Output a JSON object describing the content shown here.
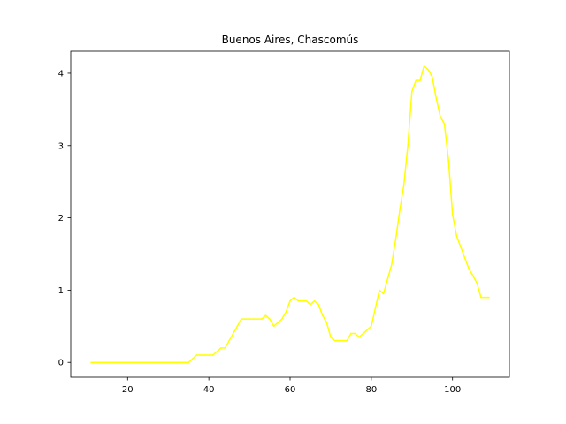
{
  "chart_data": {
    "type": "line",
    "title": "Buenos Aires, Chascomús",
    "xlabel": "",
    "ylabel": "",
    "xlim": [
      6,
      114
    ],
    "ylim": [
      -0.205,
      4.305
    ],
    "x_ticks": [
      20,
      40,
      60,
      80,
      100
    ],
    "y_ticks": [
      0,
      1,
      2,
      3,
      4
    ],
    "grid": false,
    "legend": "none",
    "series": [
      {
        "color": "#ffff00",
        "x": [
          11,
          12,
          13,
          14,
          15,
          16,
          17,
          18,
          19,
          20,
          21,
          22,
          23,
          24,
          25,
          26,
          27,
          28,
          29,
          30,
          31,
          32,
          33,
          34,
          35,
          36,
          37,
          38,
          39,
          40,
          41,
          42,
          43,
          44,
          45,
          46,
          47,
          48,
          49,
          50,
          51,
          52,
          53,
          54,
          55,
          56,
          57,
          58,
          59,
          60,
          61,
          62,
          63,
          64,
          65,
          66,
          67,
          68,
          69,
          70,
          71,
          72,
          73,
          74,
          75,
          76,
          77,
          78,
          79,
          80,
          81,
          82,
          83,
          84,
          85,
          86,
          87,
          88,
          89,
          90,
          91,
          92,
          93,
          94,
          95,
          96,
          97,
          98,
          99,
          100,
          101,
          102,
          103,
          104,
          105,
          106,
          107,
          108,
          109
        ],
        "values": [
          0,
          0,
          0,
          0,
          0,
          0,
          0,
          0,
          0,
          0,
          0,
          0,
          0,
          0,
          0,
          0,
          0,
          0,
          0,
          0,
          0,
          0,
          0,
          0,
          0,
          0.05,
          0.1,
          0.1,
          0.1,
          0.1,
          0.1,
          0.15,
          0.2,
          0.2,
          0.3,
          0.4,
          0.5,
          0.6,
          0.6,
          0.6,
          0.6,
          0.6,
          0.6,
          0.65,
          0.6,
          0.5,
          0.55,
          0.6,
          0.7,
          0.85,
          0.9,
          0.85,
          0.85,
          0.85,
          0.8,
          0.85,
          0.8,
          0.65,
          0.55,
          0.35,
          0.3,
          0.3,
          0.3,
          0.3,
          0.4,
          0.4,
          0.35,
          0.4,
          0.45,
          0.5,
          0.75,
          1.0,
          0.95,
          1.15,
          1.35,
          1.7,
          2.1,
          2.45,
          3.0,
          3.75,
          3.9,
          3.9,
          4.1,
          4.05,
          3.95,
          3.65,
          3.4,
          3.3,
          2.8,
          2.05,
          1.75,
          1.6,
          1.45,
          1.3,
          1.2,
          1.1,
          0.9,
          0.9,
          0.9
        ]
      }
    ]
  }
}
